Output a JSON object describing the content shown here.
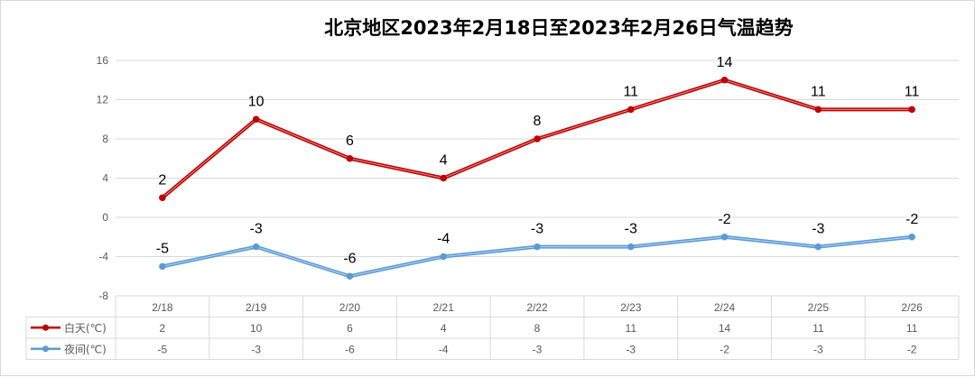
{
  "chart_data": {
    "type": "line",
    "title": "北京地区2023年2月18日至2023年2月26日气温趋势",
    "categories": [
      "2/18",
      "2/19",
      "2/20",
      "2/21",
      "2/22",
      "2/23",
      "2/24",
      "2/25",
      "2/26"
    ],
    "series": [
      {
        "name": "白天(℃)",
        "color": "#c00000",
        "values": [
          2,
          10,
          6,
          4,
          8,
          11,
          14,
          11,
          11
        ]
      },
      {
        "name": "夜间(℃)",
        "color": "#5b9bd5",
        "values": [
          -5,
          -3,
          -6,
          -4,
          -3,
          -3,
          -2,
          -3,
          -2
        ]
      }
    ],
    "yticks": [
      16,
      12,
      8,
      4,
      0,
      -4,
      -8
    ],
    "ylim": [
      -8,
      16
    ],
    "grid": true,
    "legend": "data-table-left",
    "data_table": true
  }
}
